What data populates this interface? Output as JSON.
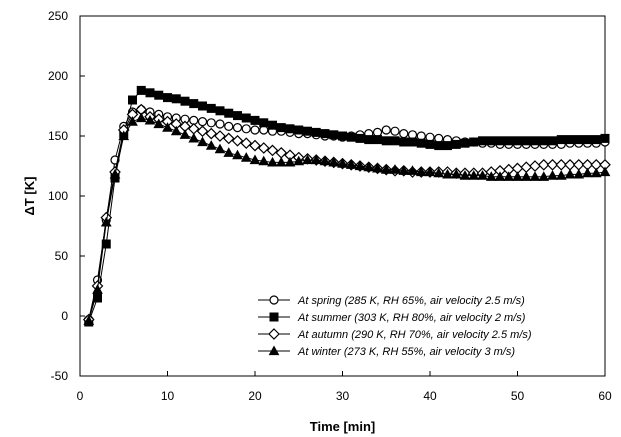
{
  "chart_data": {
    "type": "line",
    "title": "",
    "xlabel": "Time [min]",
    "ylabel": "ΔT [K]",
    "xlim": [
      0,
      60
    ],
    "ylim": [
      -50,
      250
    ],
    "xticks": [
      0,
      10,
      20,
      30,
      40,
      50,
      60
    ],
    "yticks": [
      -50,
      0,
      50,
      100,
      150,
      200,
      250
    ],
    "grid": false,
    "legend_position": "bottom-right",
    "series": [
      {
        "name": "At spring (285 K, RH 65%, air velocity 2.5 m/s)",
        "marker": "circle-open",
        "x": [
          1,
          2,
          3,
          4,
          5,
          6,
          7,
          8,
          9,
          10,
          11,
          12,
          13,
          14,
          15,
          16,
          17,
          18,
          19,
          20,
          21,
          22,
          23,
          24,
          25,
          26,
          27,
          28,
          29,
          30,
          31,
          32,
          33,
          34,
          35,
          36,
          37,
          38,
          39,
          40,
          41,
          42,
          43,
          44,
          45,
          46,
          47,
          48,
          49,
          50,
          51,
          52,
          53,
          54,
          55,
          56,
          57,
          58,
          59,
          60
        ],
        "values": [
          -3,
          30,
          80,
          130,
          158,
          170,
          172,
          170,
          168,
          166,
          165,
          164,
          163,
          162,
          161,
          160,
          158,
          157,
          156,
          155,
          155,
          154,
          154,
          153,
          152,
          152,
          151,
          150,
          150,
          149,
          150,
          151,
          152,
          153,
          155,
          154,
          152,
          151,
          150,
          149,
          148,
          147,
          146,
          145,
          145,
          144,
          144,
          143,
          143,
          143,
          143,
          143,
          143,
          143,
          143,
          144,
          144,
          144,
          144,
          145
        ]
      },
      {
        "name": "At summer (303 K, RH 80%, air velocity 2 m/s)",
        "marker": "square-filled",
        "x": [
          1,
          2,
          3,
          4,
          5,
          6,
          7,
          8,
          9,
          10,
          11,
          12,
          13,
          14,
          15,
          16,
          17,
          18,
          19,
          20,
          21,
          22,
          23,
          24,
          25,
          26,
          27,
          28,
          29,
          30,
          31,
          32,
          33,
          34,
          35,
          36,
          37,
          38,
          39,
          40,
          41,
          42,
          43,
          44,
          45,
          46,
          47,
          48,
          49,
          50,
          51,
          52,
          53,
          54,
          55,
          56,
          57,
          58,
          59,
          60
        ],
        "values": [
          -5,
          15,
          60,
          115,
          152,
          180,
          188,
          186,
          184,
          182,
          181,
          179,
          177,
          175,
          173,
          171,
          169,
          167,
          165,
          163,
          161,
          159,
          157,
          156,
          155,
          154,
          153,
          152,
          151,
          150,
          149,
          148,
          147,
          147,
          146,
          146,
          145,
          145,
          144,
          143,
          142,
          142,
          143,
          144,
          145,
          146,
          146,
          146,
          146,
          146,
          146,
          146,
          146,
          146,
          147,
          147,
          147,
          147,
          147,
          148
        ]
      },
      {
        "name": "At autumn (290 K, RH 70%, air velocity 2.5 m/s)",
        "marker": "diamond-open",
        "x": [
          1,
          2,
          3,
          4,
          5,
          6,
          7,
          8,
          9,
          10,
          11,
          12,
          13,
          14,
          15,
          16,
          17,
          18,
          19,
          20,
          21,
          22,
          23,
          24,
          25,
          26,
          27,
          28,
          29,
          30,
          31,
          32,
          33,
          34,
          35,
          36,
          37,
          38,
          39,
          40,
          41,
          42,
          43,
          44,
          45,
          46,
          47,
          48,
          49,
          50,
          51,
          52,
          53,
          54,
          55,
          56,
          57,
          58,
          59,
          60
        ],
        "values": [
          -3,
          25,
          82,
          120,
          155,
          168,
          172,
          166,
          164,
          162,
          160,
          158,
          156,
          154,
          152,
          150,
          148,
          146,
          144,
          142,
          140,
          138,
          136,
          134,
          132,
          131,
          130,
          129,
          128,
          127,
          126,
          125,
          124,
          123,
          122,
          121,
          121,
          120,
          120,
          120,
          120,
          120,
          119,
          119,
          119,
          119,
          120,
          121,
          122,
          123,
          124,
          125,
          126,
          126,
          126,
          126,
          126,
          126,
          126,
          126
        ]
      },
      {
        "name": "At winter (273 K, RH 55%, air velocity 3 m/s)",
        "marker": "triangle-filled",
        "x": [
          1,
          2,
          3,
          4,
          5,
          6,
          7,
          8,
          9,
          10,
          11,
          12,
          13,
          14,
          15,
          16,
          17,
          18,
          19,
          20,
          21,
          22,
          23,
          24,
          25,
          26,
          27,
          28,
          29,
          30,
          31,
          32,
          33,
          34,
          35,
          36,
          37,
          38,
          39,
          40,
          41,
          42,
          43,
          44,
          45,
          46,
          47,
          48,
          49,
          50,
          51,
          52,
          53,
          54,
          55,
          56,
          57,
          58,
          59,
          60
        ],
        "values": [
          -4,
          22,
          78,
          118,
          150,
          162,
          165,
          163,
          160,
          157,
          154,
          151,
          148,
          145,
          142,
          139,
          136,
          134,
          132,
          130,
          129,
          128,
          128,
          128,
          129,
          130,
          130,
          129,
          128,
          127,
          126,
          125,
          124,
          123,
          122,
          122,
          121,
          121,
          120,
          120,
          119,
          118,
          118,
          117,
          117,
          117,
          116,
          116,
          116,
          116,
          116,
          116,
          116,
          117,
          117,
          118,
          118,
          119,
          119,
          120
        ]
      }
    ]
  }
}
